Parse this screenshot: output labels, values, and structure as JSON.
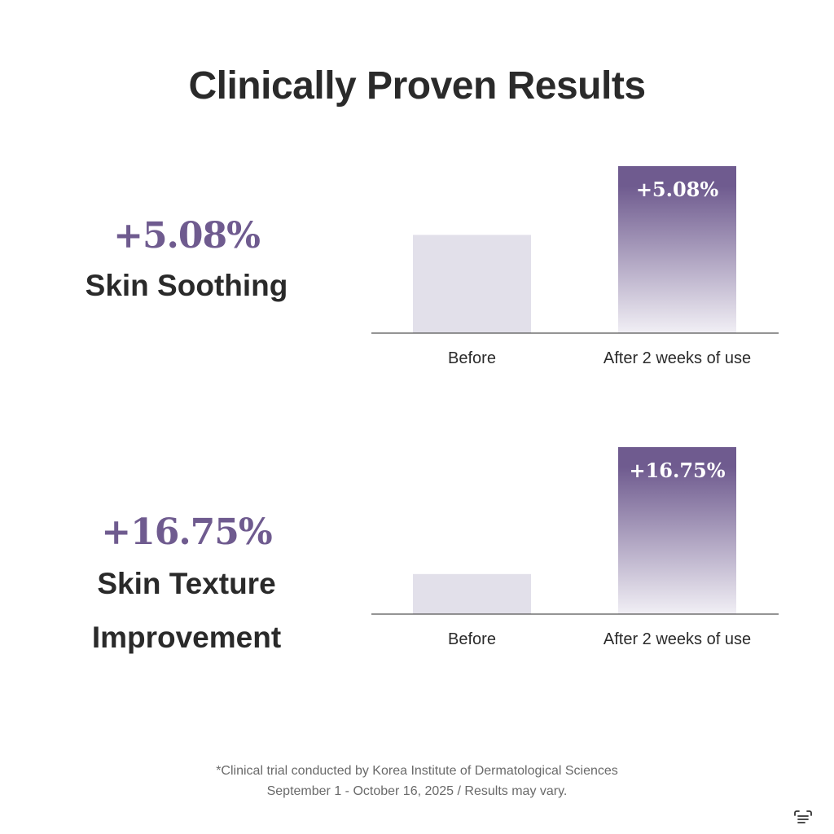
{
  "title": "Clinically Proven Results",
  "colors": {
    "accent": "#6f5b8f",
    "before_bar": "#e2e0ea",
    "after_bar_top": "#6f5b8f",
    "after_bar_bottom": "#f1eff5",
    "axis": "#555555"
  },
  "stats": [
    {
      "value": "+5.08%",
      "label": "Skin Soothing"
    },
    {
      "value": "+16.75%",
      "label_lines": [
        "Skin Texture",
        "Improvement"
      ]
    }
  ],
  "chart_data": [
    {
      "type": "bar",
      "categories": [
        "Before",
        "After 2 weeks of use"
      ],
      "values": [
        100,
        170
      ],
      "data_labels": [
        "",
        "+5.08%"
      ],
      "ylim": [
        0,
        170
      ]
    },
    {
      "type": "bar",
      "categories": [
        "Before",
        "After 2 weeks of use"
      ],
      "values": [
        24,
        100
      ],
      "data_labels": [
        "",
        "+16.75%"
      ],
      "ylim": [
        0,
        100
      ]
    }
  ],
  "footnote": {
    "line1": "*Clinical trial conducted by Korea Institute of Dermatological Sciences",
    "line2": "September 1 - October 16, 2025 / Results may vary."
  },
  "corner_icon": "text-scan-icon"
}
